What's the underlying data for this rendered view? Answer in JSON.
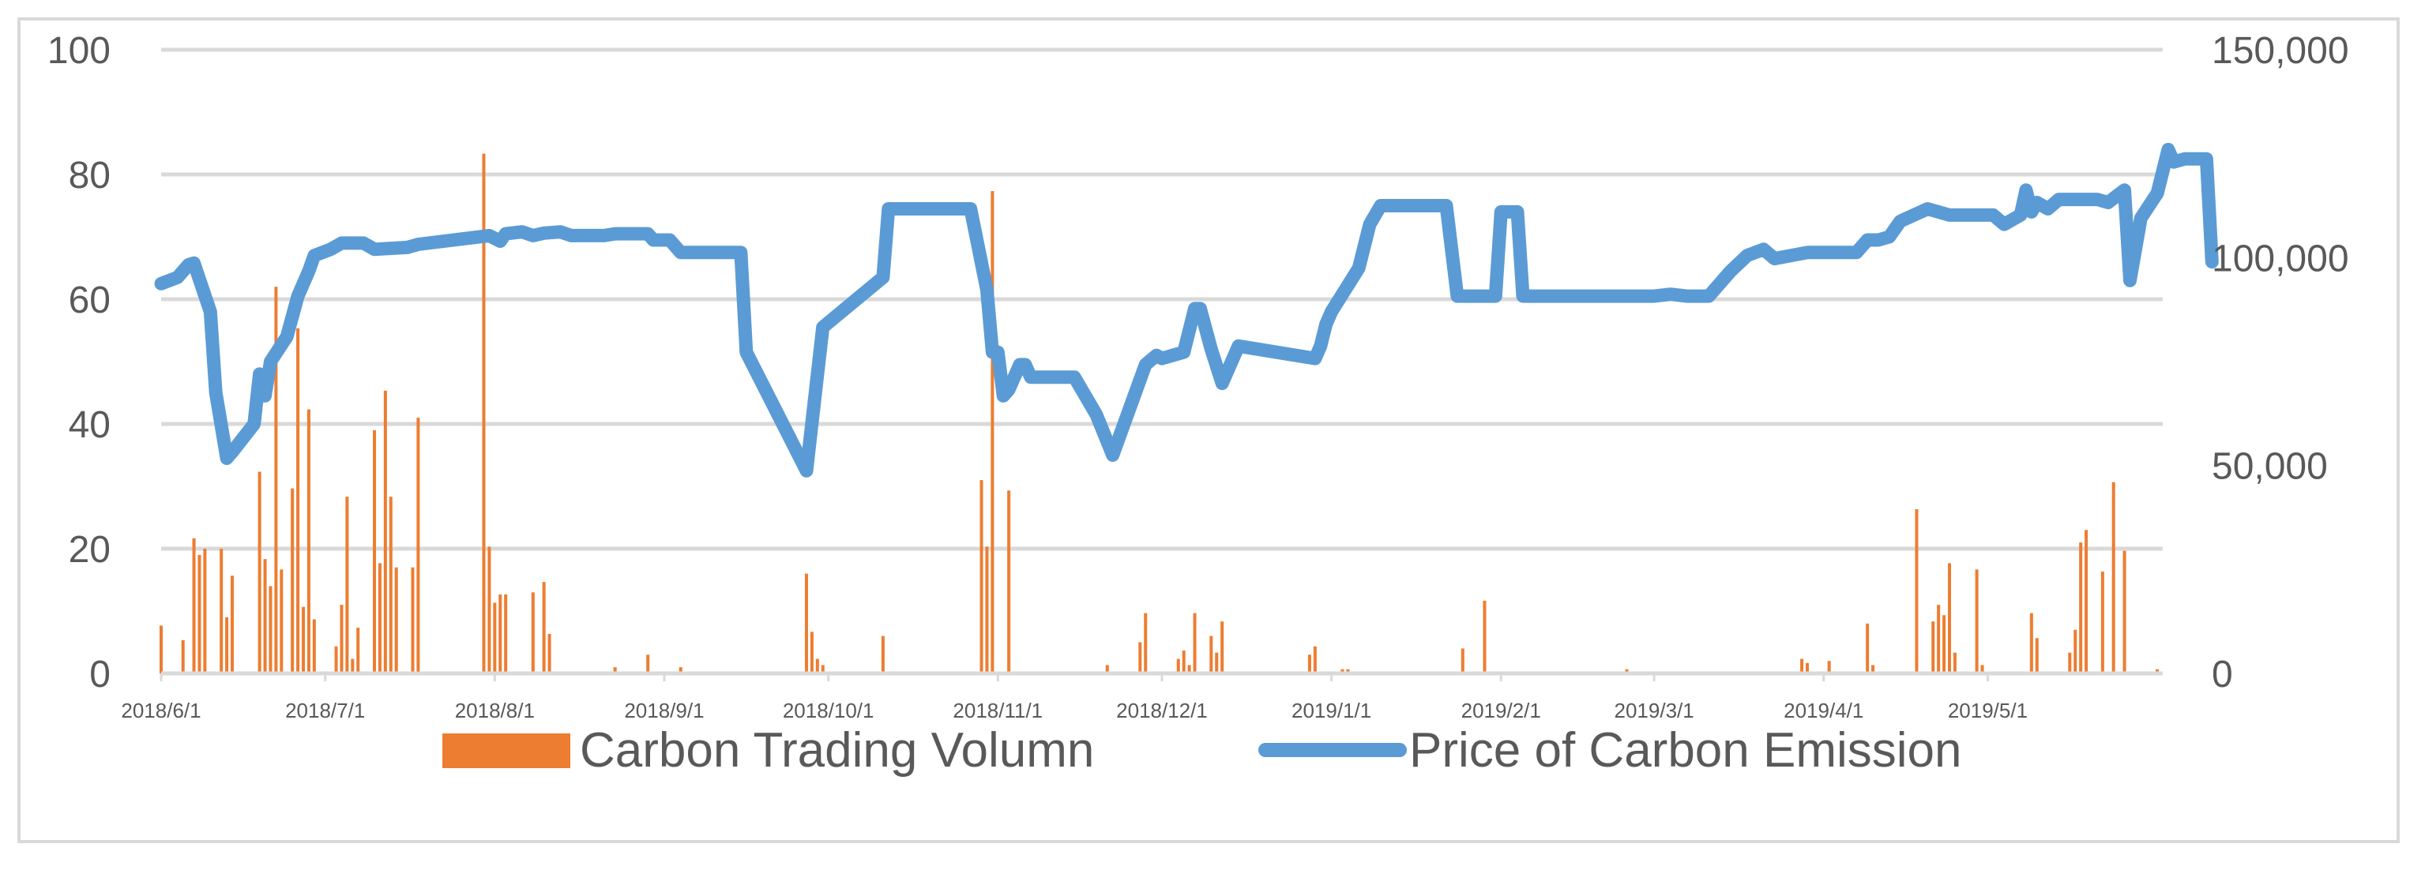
{
  "chart_data": {
    "type": "bar+line",
    "title": "",
    "x_tick_labels": [
      "2018/6/1",
      "2018/7/1",
      "2018/8/1",
      "2018/9/1",
      "2018/10/1",
      "2018/11/1",
      "2018/12/1",
      "2019/1/1",
      "2019/2/1",
      "2019/3/1",
      "2019/4/1",
      "2019/5/1"
    ],
    "x_start": "2018-06-01",
    "x_end": "2019-06-02",
    "left_axis": {
      "min": 0,
      "max": 100,
      "ticks": [
        0,
        20,
        40,
        60,
        80,
        100
      ],
      "tick_labels": [
        "0",
        "20",
        "40",
        "60",
        "80",
        "100"
      ]
    },
    "right_axis": {
      "min": 0,
      "max": 150000,
      "ticks": [
        0,
        50000,
        100000,
        150000
      ],
      "tick_labels": [
        "0",
        "50,000",
        "100,000",
        "150,000"
      ]
    },
    "gridlines": true,
    "legend_position": "bottom",
    "colors": {
      "bar": "#ED7D31",
      "line": "#5B9BD5",
      "grid": "#d9d9d9",
      "text": "#595959"
    },
    "series": [
      {
        "name": "Carbon Trading Volumn",
        "type": "bar",
        "axis": "right",
        "points": [
          [
            "2018-06-01",
            11500
          ],
          [
            "2018-06-05",
            8000
          ],
          [
            "2018-06-07",
            32500
          ],
          [
            "2018-06-08",
            28500
          ],
          [
            "2018-06-09",
            30000
          ],
          [
            "2018-06-12",
            30000
          ],
          [
            "2018-06-13",
            13500
          ],
          [
            "2018-06-14",
            23500
          ],
          [
            "2018-06-19",
            48500
          ],
          [
            "2018-06-20",
            27500
          ],
          [
            "2018-06-21",
            21000
          ],
          [
            "2018-06-22",
            93000
          ],
          [
            "2018-06-23",
            25000
          ],
          [
            "2018-06-25",
            44500
          ],
          [
            "2018-06-26",
            83000
          ],
          [
            "2018-06-27",
            16000
          ],
          [
            "2018-06-28",
            63500
          ],
          [
            "2018-06-29",
            13000
          ],
          [
            "2018-07-03",
            6500
          ],
          [
            "2018-07-04",
            16500
          ],
          [
            "2018-07-05",
            42500
          ],
          [
            "2018-07-06",
            3500
          ],
          [
            "2018-07-07",
            11000
          ],
          [
            "2018-07-10",
            58500
          ],
          [
            "2018-07-11",
            26500
          ],
          [
            "2018-07-12",
            68000
          ],
          [
            "2018-07-13",
            42500
          ],
          [
            "2018-07-14",
            25500
          ],
          [
            "2018-07-17",
            25500
          ],
          [
            "2018-07-18",
            61500
          ],
          [
            "2018-07-30",
            125000
          ],
          [
            "2018-07-31",
            30500
          ],
          [
            "2018-08-01",
            17000
          ],
          [
            "2018-08-02",
            19000
          ],
          [
            "2018-08-03",
            19000
          ],
          [
            "2018-08-08",
            19500
          ],
          [
            "2018-08-10",
            22000
          ],
          [
            "2018-08-11",
            9500
          ],
          [
            "2018-08-23",
            1500
          ],
          [
            "2018-08-29",
            4500
          ],
          [
            "2018-09-04",
            1500
          ],
          [
            "2018-09-27",
            24000
          ],
          [
            "2018-09-28",
            10000
          ],
          [
            "2018-09-29",
            3500
          ],
          [
            "2018-09-30",
            2000
          ],
          [
            "2018-10-11",
            9000
          ],
          [
            "2018-10-29",
            46500
          ],
          [
            "2018-10-30",
            30500
          ],
          [
            "2018-10-31",
            116000
          ],
          [
            "2018-11-03",
            44000
          ],
          [
            "2018-11-21",
            2000
          ],
          [
            "2018-11-27",
            7500
          ],
          [
            "2018-11-28",
            14500
          ],
          [
            "2018-12-04",
            3500
          ],
          [
            "2018-12-05",
            5500
          ],
          [
            "2018-12-06",
            2000
          ],
          [
            "2018-12-07",
            14500
          ],
          [
            "2018-12-10",
            9000
          ],
          [
            "2018-12-11",
            5000
          ],
          [
            "2018-12-12",
            12500
          ],
          [
            "2018-12-28",
            4500
          ],
          [
            "2018-12-29",
            6500
          ],
          [
            "2019-01-03",
            1000
          ],
          [
            "2019-01-04",
            1000
          ],
          [
            "2019-01-25",
            6000
          ],
          [
            "2019-01-29",
            17500
          ],
          [
            "2019-02-24",
            1000
          ],
          [
            "2019-03-28",
            3500
          ],
          [
            "2019-03-29",
            2500
          ],
          [
            "2019-04-02",
            3000
          ],
          [
            "2019-04-09",
            12000
          ],
          [
            "2019-04-10",
            2000
          ],
          [
            "2019-04-18",
            39500
          ],
          [
            "2019-04-21",
            12500
          ],
          [
            "2019-04-22",
            16500
          ],
          [
            "2019-04-23",
            14000
          ],
          [
            "2019-04-24",
            26500
          ],
          [
            "2019-04-25",
            5000
          ],
          [
            "2019-04-29",
            25000
          ],
          [
            "2019-04-30",
            2000
          ],
          [
            "2019-05-09",
            14500
          ],
          [
            "2019-05-10",
            8500
          ],
          [
            "2019-05-16",
            5000
          ],
          [
            "2019-05-17",
            10500
          ],
          [
            "2019-05-18",
            31500
          ],
          [
            "2019-05-19",
            34500
          ],
          [
            "2019-05-22",
            24500
          ],
          [
            "2019-05-24",
            46000
          ],
          [
            "2019-05-26",
            29500
          ],
          [
            "2019-06-01",
            1000
          ]
        ]
      },
      {
        "name": "Price of Carbon Emission",
        "type": "line",
        "axis": "left",
        "points": [
          [
            "2018-06-01",
            62.5
          ],
          [
            "2018-06-04",
            63.5
          ],
          [
            "2018-06-06",
            65.5
          ],
          [
            "2018-06-07",
            65.8
          ],
          [
            "2018-06-10",
            58
          ],
          [
            "2018-06-11",
            45
          ],
          [
            "2018-06-13",
            34.5
          ],
          [
            "2018-06-14",
            35.5
          ],
          [
            "2018-06-18",
            40
          ],
          [
            "2018-06-19",
            48
          ],
          [
            "2018-06-20",
            44.5
          ],
          [
            "2018-06-21",
            50
          ],
          [
            "2018-06-24",
            54
          ],
          [
            "2018-06-26",
            60.5
          ],
          [
            "2018-06-28",
            64.5
          ],
          [
            "2018-06-29",
            67
          ],
          [
            "2018-07-02",
            68
          ],
          [
            "2018-07-04",
            69
          ],
          [
            "2018-07-08",
            69
          ],
          [
            "2018-07-10",
            68
          ],
          [
            "2018-07-16",
            68.3
          ],
          [
            "2018-07-18",
            68.8
          ],
          [
            "2018-07-31",
            70.2
          ],
          [
            "2018-08-02",
            69.3
          ],
          [
            "2018-08-03",
            70.5
          ],
          [
            "2018-08-06",
            70.8
          ],
          [
            "2018-08-08",
            70.2
          ],
          [
            "2018-08-10",
            70.6
          ],
          [
            "2018-08-13",
            70.8
          ],
          [
            "2018-08-15",
            70.2
          ],
          [
            "2018-08-21",
            70.2
          ],
          [
            "2018-08-23",
            70.5
          ],
          [
            "2018-08-29",
            70.5
          ],
          [
            "2018-08-30",
            69.5
          ],
          [
            "2018-09-02",
            69.5
          ],
          [
            "2018-09-04",
            67.5
          ],
          [
            "2018-09-15",
            67.5
          ],
          [
            "2018-09-16",
            51.5
          ],
          [
            "2018-09-27",
            32.5
          ],
          [
            "2018-09-30",
            55.5
          ],
          [
            "2018-10-11",
            63.5
          ],
          [
            "2018-10-12",
            74.5
          ],
          [
            "2018-10-27",
            74.5
          ],
          [
            "2018-10-30",
            61.5
          ],
          [
            "2018-10-31",
            51.5
          ],
          [
            "2018-11-01",
            51.5
          ],
          [
            "2018-11-02",
            44.5
          ],
          [
            "2018-11-03",
            45.5
          ],
          [
            "2018-11-05",
            49.5
          ],
          [
            "2018-11-06",
            49.5
          ],
          [
            "2018-11-07",
            47.5
          ],
          [
            "2018-11-15",
            47.5
          ],
          [
            "2018-11-19",
            41.5
          ],
          [
            "2018-11-22",
            35
          ],
          [
            "2018-11-28",
            49.5
          ],
          [
            "2018-11-30",
            51
          ],
          [
            "2018-12-01",
            50.5
          ],
          [
            "2018-12-05",
            51.5
          ],
          [
            "2018-12-07",
            58.5
          ],
          [
            "2018-12-08",
            58.5
          ],
          [
            "2018-12-10",
            52
          ],
          [
            "2018-12-12",
            46.5
          ],
          [
            "2018-12-15",
            52.5
          ],
          [
            "2018-12-29",
            50.5
          ],
          [
            "2018-12-30",
            52.5
          ],
          [
            "2018-12-31",
            56
          ],
          [
            "2019-01-01",
            58
          ],
          [
            "2019-01-06",
            65
          ],
          [
            "2019-01-08",
            72
          ],
          [
            "2019-01-10",
            75
          ],
          [
            "2019-01-22",
            75
          ],
          [
            "2019-01-24",
            60.5
          ],
          [
            "2019-01-31",
            60.5
          ],
          [
            "2019-02-01",
            74
          ],
          [
            "2019-02-04",
            74
          ],
          [
            "2019-02-05",
            60.5
          ],
          [
            "2019-03-01",
            60.5
          ],
          [
            "2019-03-04",
            60.8
          ],
          [
            "2019-03-07",
            60.5
          ],
          [
            "2019-03-11",
            60.5
          ],
          [
            "2019-03-15",
            64.5
          ],
          [
            "2019-03-18",
            67
          ],
          [
            "2019-03-21",
            68
          ],
          [
            "2019-03-23",
            66.5
          ],
          [
            "2019-03-29",
            67.5
          ],
          [
            "2019-04-07",
            67.5
          ],
          [
            "2019-04-09",
            69.5
          ],
          [
            "2019-04-11",
            69.5
          ],
          [
            "2019-04-13",
            70
          ],
          [
            "2019-04-15",
            72.5
          ],
          [
            "2019-04-20",
            74.5
          ],
          [
            "2019-04-24",
            73.5
          ],
          [
            "2019-05-02",
            73.5
          ],
          [
            "2019-05-04",
            72
          ],
          [
            "2019-05-07",
            73.5
          ],
          [
            "2019-05-08",
            77.5
          ],
          [
            "2019-05-09",
            74
          ],
          [
            "2019-05-10",
            75.5
          ],
          [
            "2019-05-12",
            74.5
          ],
          [
            "2019-05-14",
            76
          ],
          [
            "2019-05-21",
            76
          ],
          [
            "2019-05-23",
            75.5
          ],
          [
            "2019-05-26",
            77.5
          ],
          [
            "2019-05-27",
            63
          ],
          [
            "2019-05-29",
            73
          ],
          [
            "2019-06-01",
            77
          ],
          [
            "2019-06-03",
            84
          ],
          [
            "2019-06-04",
            82
          ],
          [
            "2019-06-06",
            82.5
          ],
          [
            "2019-06-10",
            82.5
          ],
          [
            "2019-06-11",
            66
          ]
        ]
      }
    ]
  }
}
